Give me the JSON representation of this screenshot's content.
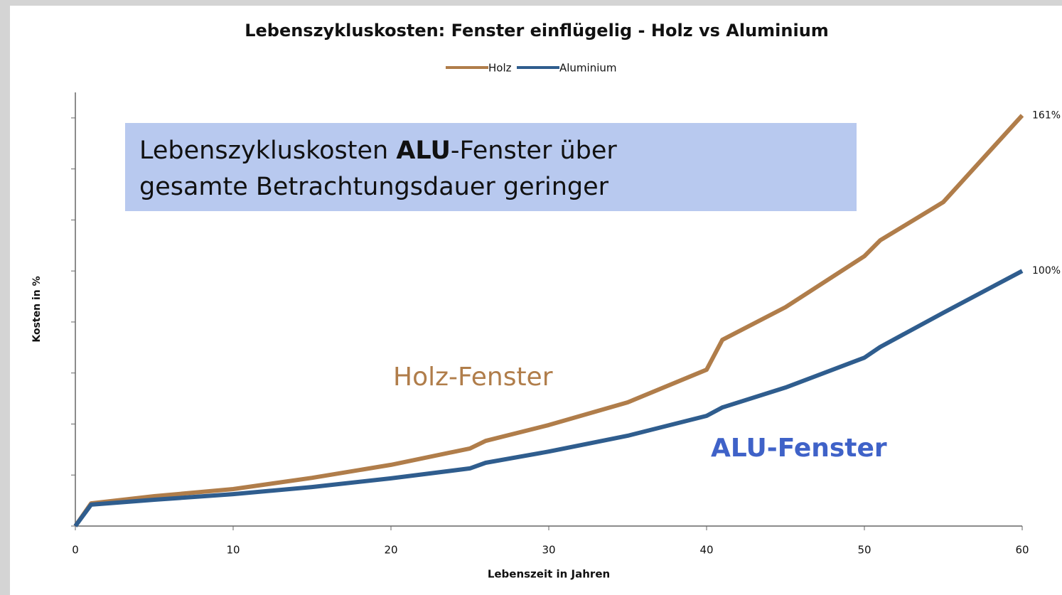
{
  "chart_data": {
    "type": "line",
    "title": "Lebenszykluskosten: Fenster einflügelig - Holz vs Aluminium",
    "x_label": "Lebenszeit in Jahren",
    "y_label": "Kosten in %",
    "x": [
      0,
      1,
      5,
      10,
      15,
      20,
      25,
      26,
      30,
      35,
      40,
      41,
      45,
      50,
      51,
      55,
      60
    ],
    "series": [
      {
        "name": "Holz",
        "color": "#b07d4a",
        "values": [
          0,
          8.9,
          11.7,
          14.5,
          18.9,
          24,
          30.4,
          33.4,
          39.6,
          48.5,
          61.3,
          73,
          85.8,
          105.8,
          112,
          127,
          161
        ],
        "value_labels": [
          null,
          null,
          null,
          null,
          null,
          null,
          null,
          null,
          null,
          null,
          null,
          null,
          null,
          null,
          null,
          null,
          "161%"
        ]
      },
      {
        "name": "Aluminium",
        "color": "#2f5d8e",
        "values": [
          0,
          8.4,
          10.3,
          12.5,
          15.3,
          18.7,
          22.6,
          24.8,
          29.2,
          35.4,
          43.2,
          46.5,
          54.3,
          66,
          70.2,
          83.6,
          100
        ],
        "value_labels": [
          null,
          null,
          null,
          null,
          null,
          null,
          null,
          null,
          null,
          null,
          null,
          null,
          null,
          null,
          null,
          null,
          "100%"
        ]
      }
    ],
    "xlim": [
      0,
      60
    ],
    "xticks": [
      0,
      10,
      20,
      30,
      40,
      50,
      60
    ],
    "ylim": [
      0,
      170
    ],
    "yticks": [
      0,
      20,
      40,
      60,
      80,
      100,
      120,
      140,
      160
    ],
    "legend": "top",
    "annotations": {
      "box": [
        "Lebenszykluskosten ",
        "ALU",
        "-Fenster über",
        "gesamte Betrachtungsdauer geringer"
      ],
      "holz_label": "Holz-Fenster",
      "alu_label": "ALU-Fenster"
    }
  }
}
